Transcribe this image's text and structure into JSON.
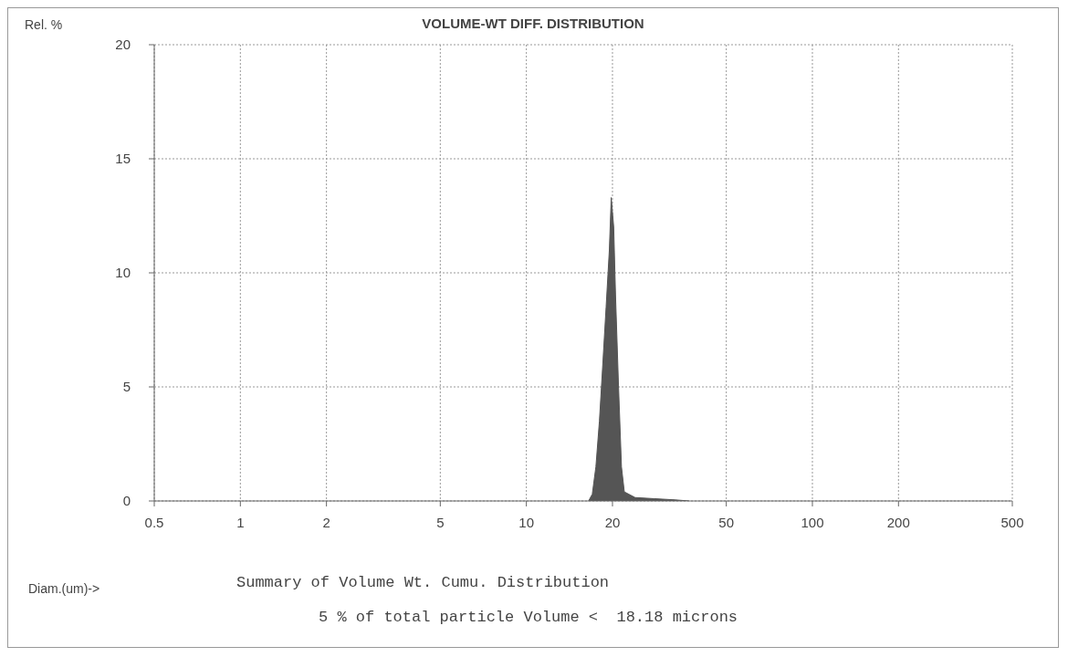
{
  "chart_data": {
    "type": "area",
    "title": "VOLUME-WT DIFF. DISTRIBUTION",
    "xlabel": "Diam.(um)->",
    "ylabel": "Rel. %",
    "x": [
      16.5,
      17,
      17.5,
      18,
      18.5,
      19,
      19.5,
      19.8,
      20.2,
      20.5,
      21,
      21.5,
      22,
      24,
      28,
      33,
      37
    ],
    "series": [
      {
        "color": "#555555",
        "values": [
          0,
          0.3,
          1.5,
          3.5,
          6,
          8.5,
          11,
          13.3,
          12,
          9,
          5,
          1.5,
          0.4,
          0.15,
          0.1,
          0.05,
          0
        ]
      }
    ],
    "log": "x",
    "xlim": [
      0.5,
      500
    ],
    "xticks": [
      0.5,
      1,
      2,
      5,
      10,
      20,
      50,
      100,
      200,
      500
    ],
    "ylim": [
      0,
      20
    ],
    "yticks": [
      0,
      5,
      10,
      15,
      20
    ],
    "grid": true,
    "annotations": [
      "Summary of Volume Wt. Cumu. Distribution",
      "5 % of total particle Volume <  18.18 microns"
    ]
  }
}
